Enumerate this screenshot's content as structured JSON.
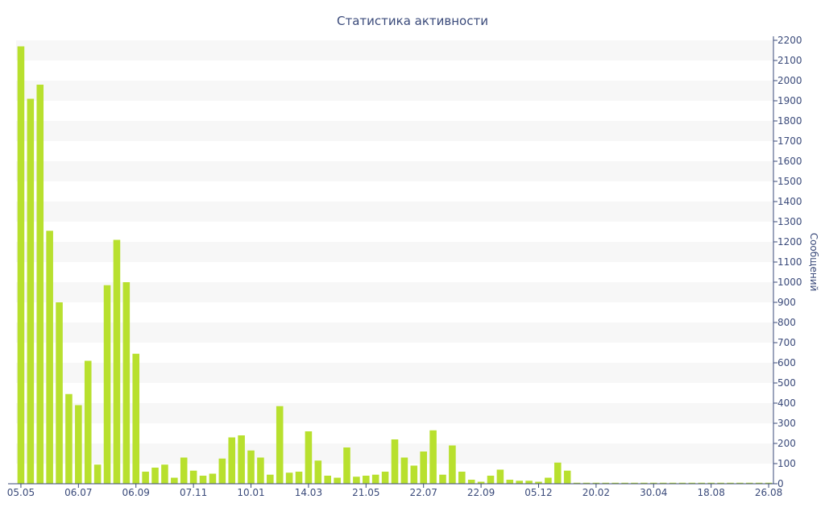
{
  "colors": {
    "bar": "#b8e02e",
    "band": "#f7f7f7",
    "axis": "#3a4a7a",
    "text": "#3a4a7a"
  },
  "chart_data": {
    "type": "bar",
    "title": "Статистика активности",
    "xlabel": "",
    "ylabel": "Сообщений",
    "ylim": [
      0,
      2200
    ],
    "ytick_step": 100,
    "y_axis_position": "right",
    "grid": "alternating-bands",
    "legend": "none",
    "x_tick_labels": [
      "05.05",
      "06.07",
      "06.09",
      "07.11",
      "10.01",
      "14.03",
      "21.05",
      "22.07",
      "22.09",
      "05.12",
      "20.02",
      "30.04",
      "18.08",
      "26.08"
    ],
    "x_tick_indices": [
      0,
      6,
      12,
      18,
      24,
      30,
      36,
      42,
      48,
      54,
      60,
      66,
      72,
      78
    ],
    "values": [
      2170,
      1910,
      1980,
      1255,
      900,
      445,
      390,
      610,
      95,
      985,
      1210,
      1000,
      645,
      60,
      80,
      95,
      30,
      130,
      65,
      40,
      50,
      125,
      230,
      240,
      165,
      130,
      45,
      385,
      55,
      60,
      260,
      115,
      40,
      30,
      180,
      35,
      40,
      45,
      60,
      220,
      130,
      90,
      160,
      265,
      45,
      190,
      60,
      20,
      10,
      40,
      70,
      20,
      15,
      15,
      10,
      30,
      105,
      65,
      5,
      5,
      5,
      5,
      5,
      5,
      5,
      5,
      5,
      5,
      5,
      5,
      5,
      5,
      5,
      5,
      5,
      5,
      5,
      5,
      5
    ]
  }
}
